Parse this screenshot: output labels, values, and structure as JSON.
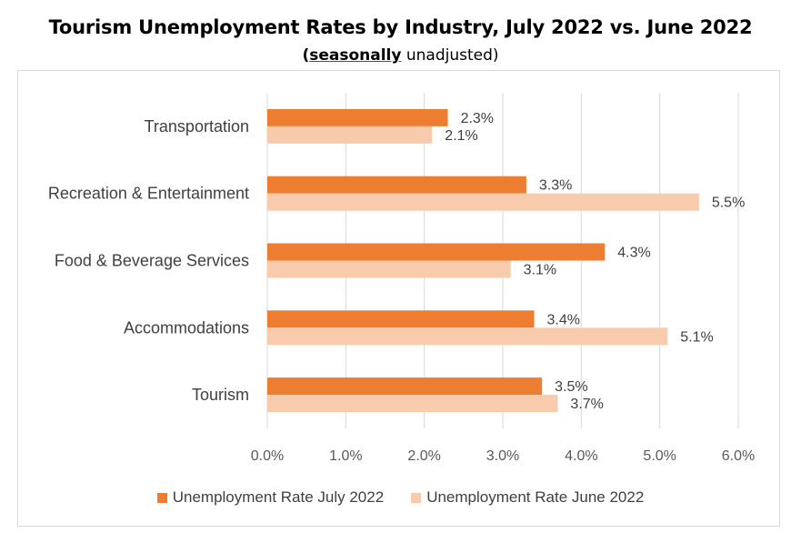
{
  "chart_data": {
    "type": "bar",
    "orientation": "horizontal",
    "title": "Tourism Unemployment Rates by Industry, July 2022 vs. June 2022",
    "subtitle": {
      "open": "(",
      "underlined": "seasonally",
      "rest": " unadjusted)"
    },
    "categories": [
      "Transportation",
      "Recreation & Entertainment",
      "Food & Beverage Services",
      "Accommodations",
      "Tourism"
    ],
    "series": [
      {
        "name": "Unemployment Rate July 2022",
        "color": "#ed7d31",
        "values": [
          2.3,
          3.3,
          4.3,
          3.4,
          3.5
        ],
        "labels": [
          "2.3%",
          "3.3%",
          "4.3%",
          "3.4%",
          "3.5%"
        ]
      },
      {
        "name": "Unemployment Rate June 2022",
        "color": "#f8cbad",
        "values": [
          2.1,
          5.5,
          3.1,
          5.1,
          3.7
        ],
        "labels": [
          "2.1%",
          "5.5%",
          "3.1%",
          "5.1%",
          "3.7%"
        ]
      }
    ],
    "xlim": [
      0,
      6
    ],
    "xticks": [
      "0.0%",
      "1.0%",
      "2.0%",
      "3.0%",
      "4.0%",
      "5.0%",
      "6.0%"
    ],
    "grid": true,
    "legend_position": "bottom"
  }
}
